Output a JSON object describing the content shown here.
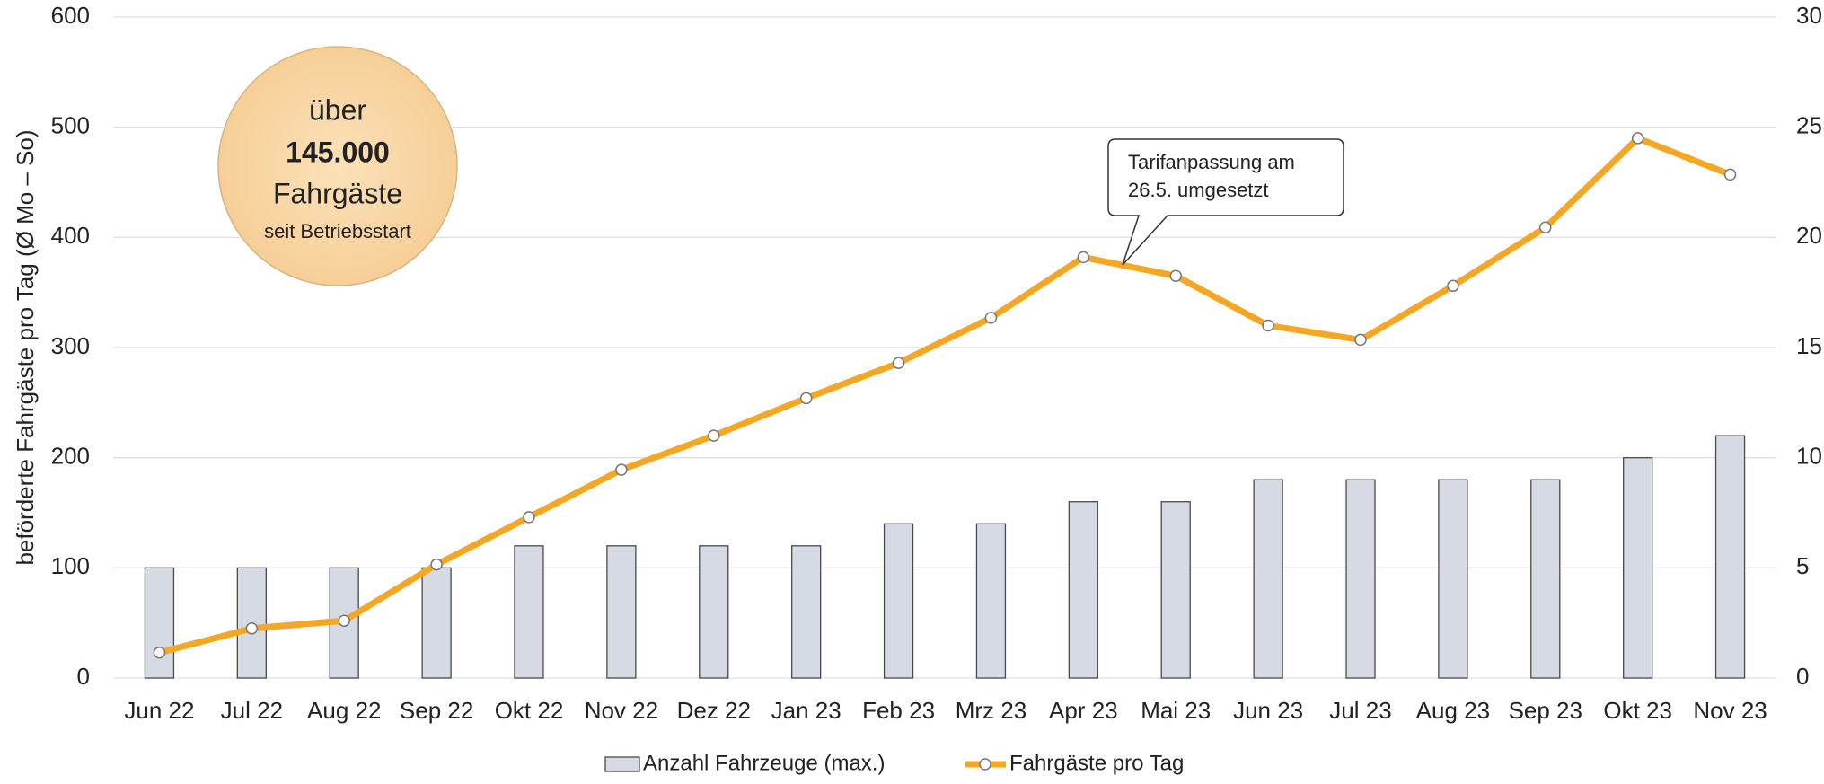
{
  "chart_data": {
    "type": "combo",
    "y_label": "beförderte Fahrgäste pro Tag (Ø Mo – So)",
    "categories": [
      "Jun 22",
      "Jul 22",
      "Aug 22",
      "Sep 22",
      "Okt 22",
      "Nov 22",
      "Dez 22",
      "Jan 23",
      "Feb 23",
      "Mrz 23",
      "Apr 23",
      "Mai 23",
      "Jun 23",
      "Jul 23",
      "Aug 23",
      "Sep 23",
      "Okt 23",
      "Nov 23"
    ],
    "series": [
      {
        "name": "Anzahl Fahrzeuge (max.)",
        "type": "bar",
        "axis": "y2",
        "color": "#d5dae3",
        "values": [
          5,
          5,
          5,
          5,
          6,
          6,
          6,
          6,
          7,
          7,
          8,
          8,
          9,
          9,
          9,
          9,
          10,
          11
        ]
      },
      {
        "name": "Fahrgäste pro Tag",
        "type": "line",
        "axis": "y",
        "color": "#f5a623",
        "values": [
          23,
          45,
          52,
          103,
          146,
          189,
          220,
          254,
          286,
          327,
          382,
          365,
          320,
          307,
          356,
          409,
          490,
          457
        ]
      }
    ],
    "ylim": [
      0,
      600
    ],
    "yticks": [
      0,
      100,
      200,
      300,
      400,
      500,
      600
    ],
    "y2lim": [
      0,
      30
    ],
    "y2ticks": [
      0,
      5,
      10,
      15,
      20,
      25,
      30
    ],
    "grid": true,
    "legend": "bottom",
    "annotation": [
      "Tarifanpassung am",
      "26.5. umgesetzt"
    ],
    "badge": [
      "über",
      "145.000",
      "Fahrgäste",
      "seit Betriebsstart"
    ]
  }
}
